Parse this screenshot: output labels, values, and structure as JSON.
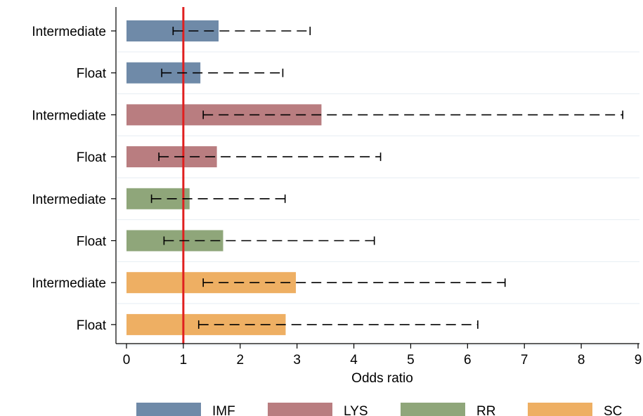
{
  "chart_data": {
    "type": "bar",
    "orientation": "horizontal",
    "xlabel": "Odds ratio",
    "ylabel": "",
    "xlim": [
      0,
      9
    ],
    "x_ticks": [
      "0",
      "1",
      "2",
      "3",
      "4",
      "5",
      "6",
      "7",
      "8",
      "9"
    ],
    "reference_line": {
      "x": 1,
      "color": "#e01f1f"
    },
    "error_bars": "dashed",
    "grid": "horizontal",
    "legend_position": "bottom",
    "categories": [
      "Intermediate",
      "Float",
      "Intermediate",
      "Float",
      "Intermediate",
      "Float",
      "Intermediate",
      "Float"
    ],
    "series": [
      {
        "name": "IMF",
        "color": "#6f8aa8",
        "rows": [
          {
            "category": "Intermediate",
            "value": 1.62,
            "ci_low": 0.82,
            "ci_high": 3.23
          },
          {
            "category": "Float",
            "value": 1.3,
            "ci_low": 0.62,
            "ci_high": 2.75
          }
        ]
      },
      {
        "name": "LYS",
        "color": "#b97d80",
        "rows": [
          {
            "category": "Intermediate",
            "value": 3.43,
            "ci_low": 1.35,
            "ci_high": 8.73
          },
          {
            "category": "Float",
            "value": 1.59,
            "ci_low": 0.57,
            "ci_high": 4.47
          }
        ]
      },
      {
        "name": "RR",
        "color": "#8fa67a",
        "rows": [
          {
            "category": "Intermediate",
            "value": 1.11,
            "ci_low": 0.44,
            "ci_high": 2.79
          },
          {
            "category": "Float",
            "value": 1.7,
            "ci_low": 0.66,
            "ci_high": 4.36
          }
        ]
      },
      {
        "name": "SC",
        "color": "#eeaf63",
        "rows": [
          {
            "category": "Intermediate",
            "value": 2.98,
            "ci_low": 1.35,
            "ci_high": 6.66
          },
          {
            "category": "Float",
            "value": 2.8,
            "ci_low": 1.27,
            "ci_high": 6.18
          }
        ]
      }
    ]
  }
}
